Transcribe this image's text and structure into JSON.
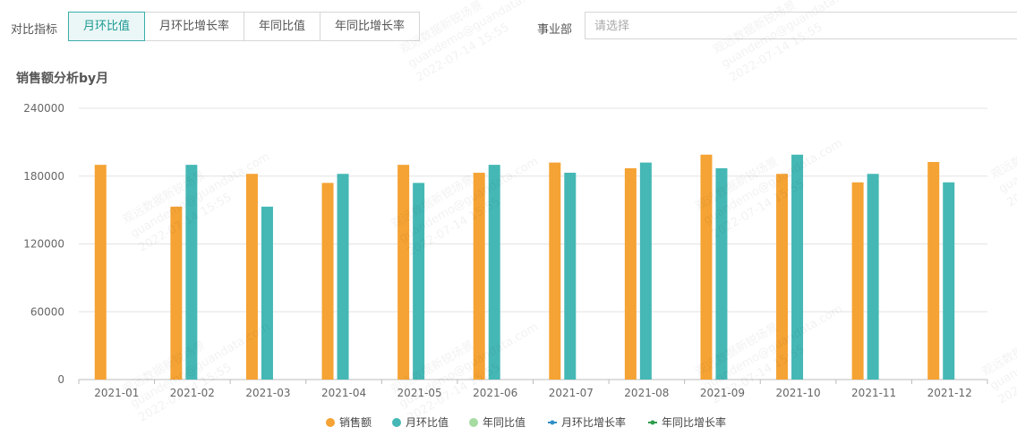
{
  "filter": {
    "label": "对比指标",
    "options": [
      "月环比值",
      "月环比增长率",
      "年同比值",
      "年同比增长率"
    ],
    "active_index": 0
  },
  "business_unit": {
    "label": "事业部",
    "placeholder": "请选择"
  },
  "chart_title": "销售额分析by月",
  "watermark": {
    "line1": "观远数据新锐场景",
    "line2": "guandemo@guandata.com",
    "line3": "2022-07-14 15:55"
  },
  "chart_data": {
    "type": "bar",
    "title": "销售额分析by月",
    "categories": [
      "2021-01",
      "2021-02",
      "2021-03",
      "2021-04",
      "2021-05",
      "2021-06",
      "2021-07",
      "2021-08",
      "2021-09",
      "2021-10",
      "2021-11",
      "2021-12"
    ],
    "ylim": [
      0,
      240000
    ],
    "yticks": [
      0,
      60000,
      120000,
      180000,
      240000
    ],
    "grid": true,
    "legend_position": "bottom",
    "series": [
      {
        "name": "销售额",
        "color": "#f5a334",
        "type": "bar",
        "values": [
          190000,
          153000,
          182000,
          174000,
          190000,
          183000,
          192000,
          187000,
          199000,
          182000,
          174500,
          192500
        ]
      },
      {
        "name": "月环比值",
        "color": "#45b8b5",
        "type": "bar",
        "values": [
          null,
          190000,
          153000,
          182000,
          174000,
          190000,
          183000,
          192000,
          187000,
          199000,
          182000,
          174500
        ]
      },
      {
        "name": "年同比值",
        "color": "#a6dca2",
        "type": "bar",
        "values": [
          null,
          null,
          null,
          null,
          null,
          null,
          null,
          null,
          null,
          null,
          null,
          null
        ]
      },
      {
        "name": "月环比增长率",
        "color": "#2f8fc6",
        "type": "line",
        "values": [
          null,
          null,
          null,
          null,
          null,
          null,
          null,
          null,
          null,
          null,
          null,
          null
        ]
      },
      {
        "name": "年同比增长率",
        "color": "#2e9e4c",
        "type": "line",
        "values": [
          null,
          null,
          null,
          null,
          null,
          null,
          null,
          null,
          null,
          null,
          null,
          null
        ]
      }
    ]
  }
}
